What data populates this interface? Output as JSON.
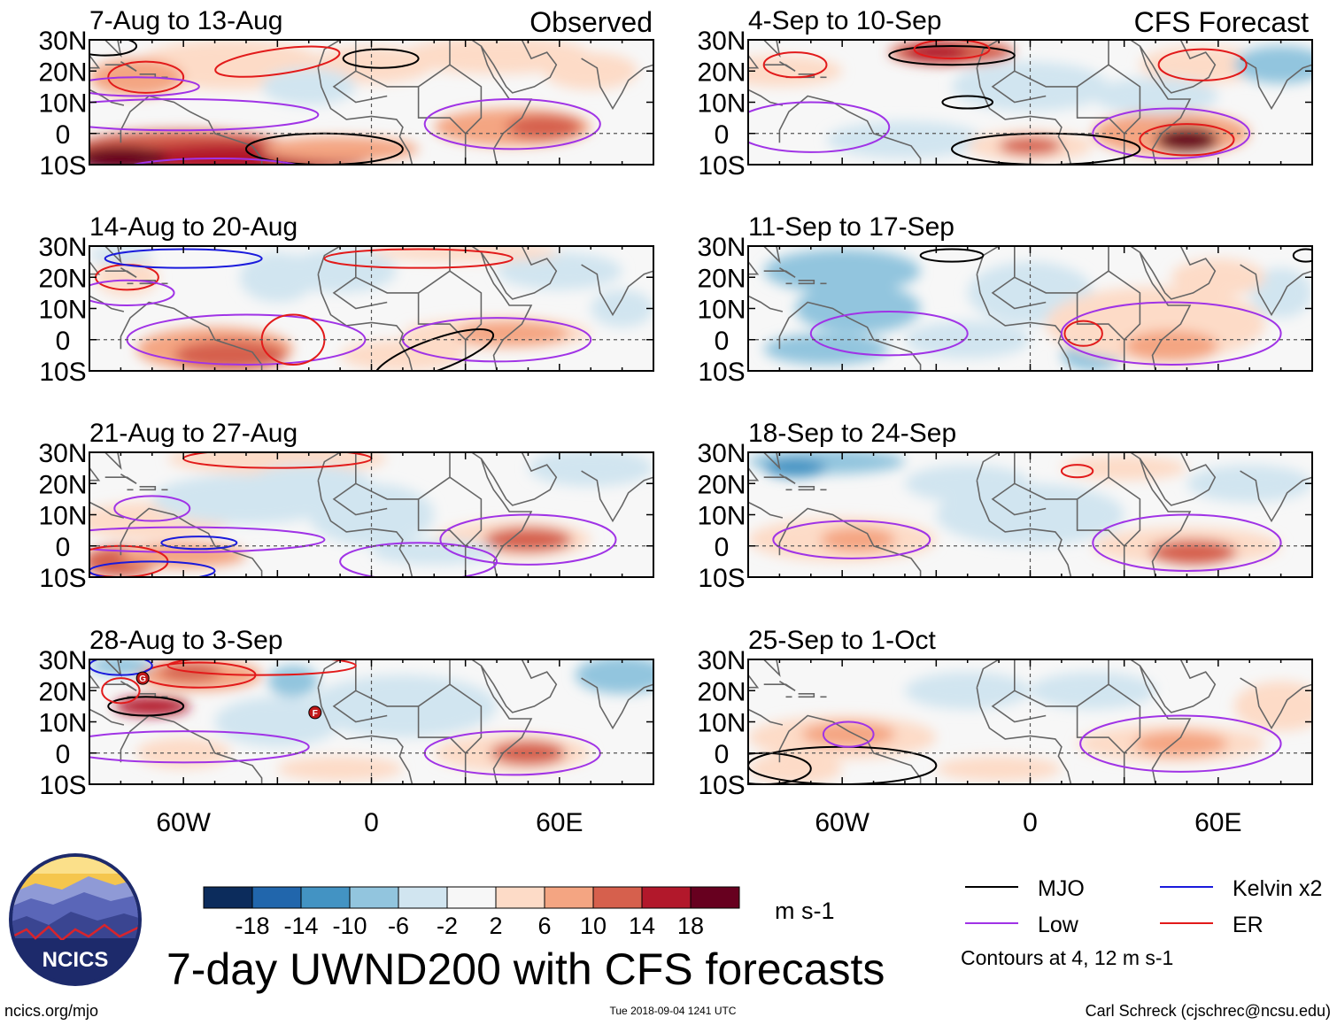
{
  "chart_data": {
    "type": "heatmap",
    "title": "7-day UWND200 with CFS forecasts",
    "variable": "UWND200",
    "columns": [
      {
        "header": "Observed",
        "panels": [
          "7-Aug to 13-Aug",
          "14-Aug to 20-Aug",
          "21-Aug to 27-Aug",
          "28-Aug to 3-Sep"
        ]
      },
      {
        "header": "CFS Forecast",
        "panels": [
          "4-Sep to 10-Sep",
          "11-Sep to 17-Sep",
          "18-Sep to 24-Sep",
          "25-Sep to 1-Oct"
        ]
      }
    ],
    "lat_ticks": [
      "30N",
      "20N",
      "10N",
      "0",
      "10S"
    ],
    "lat_values": [
      30,
      20,
      10,
      0,
      -10
    ],
    "lon_ticks": [
      "60W",
      "0",
      "60E"
    ],
    "lon_values": [
      -60,
      0,
      60
    ],
    "xlim": [
      -90,
      90
    ],
    "ylim": [
      -10,
      30
    ],
    "colorbar": {
      "unit": "m s-1",
      "labels": [
        "-18",
        "-14",
        "-10",
        "-6",
        "-2",
        "2",
        "6",
        "10",
        "14",
        "18"
      ],
      "levels": [
        -18,
        -14,
        -10,
        -6,
        -2,
        2,
        6,
        10,
        14,
        18
      ],
      "colors": [
        "#0c2c5c",
        "#2166ac",
        "#4393c3",
        "#92c5de",
        "#d1e5f0",
        "#f7f7f7",
        "#fddbc7",
        "#f4a582",
        "#d6604d",
        "#b2182b",
        "#67001f"
      ]
    },
    "legend": [
      {
        "label": "MJO",
        "color": "#000000"
      },
      {
        "label": "Kelvin x2",
        "color": "#1a1adc"
      },
      {
        "label": "Low",
        "color": "#a033e6"
      },
      {
        "label": "ER",
        "color": "#e21a1a"
      }
    ],
    "contour_note": "Contours at 4, 12 m s-1"
  },
  "logo": {
    "text": "NCICS"
  },
  "footer": {
    "site": "ncics.org/mjo",
    "timestamp": "Tue 2018-09-04 1241 UTC",
    "author": "Carl Schreck (cjschrec@ncsu.edu)"
  },
  "storm_markers": [
    "G",
    "F"
  ]
}
